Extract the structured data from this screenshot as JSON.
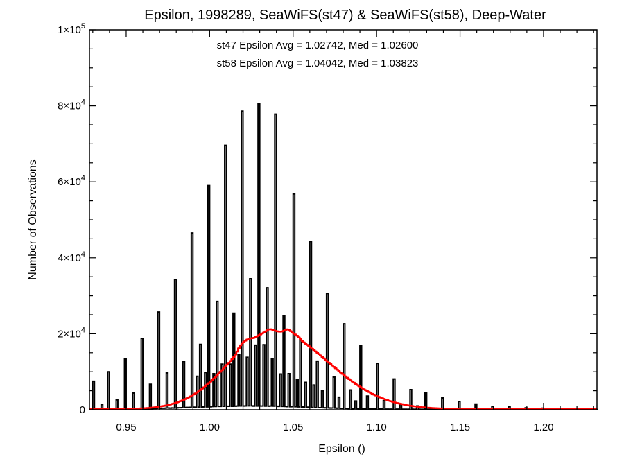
{
  "chart_data": {
    "type": "histogram",
    "title": "Epsilon, 1998289, SeaWiFS(st47) & SeaWiFS(st58), Deep-Water",
    "xlabel": "Epsilon ()",
    "ylabel": "Number of Observations",
    "xlim": [
      0.928,
      1.232
    ],
    "ylim": [
      0,
      100000
    ],
    "x_ticks": [
      {
        "value": 0.95,
        "label": "0.95"
      },
      {
        "value": 1.0,
        "label": "1.00"
      },
      {
        "value": 1.05,
        "label": "1.05"
      },
      {
        "value": 1.1,
        "label": "1.10"
      },
      {
        "value": 1.15,
        "label": "1.15"
      },
      {
        "value": 1.2,
        "label": "1.20"
      }
    ],
    "y_ticks": [
      {
        "value": 0,
        "mant": "0",
        "exp": ""
      },
      {
        "value": 20000,
        "mant": "2×10",
        "exp": "4"
      },
      {
        "value": 40000,
        "mant": "4×10",
        "exp": "4"
      },
      {
        "value": 60000,
        "mant": "6×10",
        "exp": "4"
      },
      {
        "value": 80000,
        "mant": "8×10",
        "exp": "4"
      },
      {
        "value": 100000,
        "mant": "1×10",
        "exp": "5"
      }
    ],
    "annotations": [
      {
        "text": "st47 Epsilon Avg = 1.02742, Med = 1.02600",
        "color": "#000000"
      },
      {
        "text": "st58 Epsilon Avg = 1.04042, Med = 1.03823",
        "color": "#ff0000"
      }
    ],
    "bin_width": 0.001,
    "series": [
      {
        "color": "#000000",
        "style": "step",
        "spikes": [
          [
            0.93,
            7500
          ],
          [
            0.94,
            10000
          ],
          [
            0.95,
            13500
          ],
          [
            0.96,
            18800
          ],
          [
            0.97,
            25700
          ],
          [
            0.98,
            34300
          ],
          [
            0.99,
            46500
          ],
          [
            1.0,
            59000
          ],
          [
            1.01,
            69600
          ],
          [
            1.02,
            78600
          ],
          [
            1.03,
            80500
          ],
          [
            1.04,
            77800
          ],
          [
            1.05,
            56800
          ],
          [
            1.06,
            44300
          ],
          [
            1.07,
            30600
          ],
          [
            1.08,
            22600
          ],
          [
            1.09,
            16800
          ],
          [
            1.1,
            12200
          ],
          [
            1.11,
            8100
          ],
          [
            1.12,
            5300
          ],
          [
            1.13,
            4400
          ],
          [
            1.14,
            3100
          ],
          [
            1.15,
            2200
          ],
          [
            1.16,
            1500
          ],
          [
            1.17,
            900
          ],
          [
            1.18,
            800
          ],
          [
            1.19,
            500
          ],
          [
            1.2,
            400
          ],
          [
            1.21,
            300
          ],
          [
            1.22,
            200
          ],
          [
            0.935,
            1400
          ],
          [
            0.945,
            2600
          ],
          [
            0.955,
            4400
          ],
          [
            0.965,
            6700
          ],
          [
            0.975,
            9700
          ],
          [
            0.985,
            12700
          ],
          [
            0.995,
            17200
          ],
          [
            1.005,
            28500
          ],
          [
            1.015,
            25400
          ],
          [
            1.025,
            34500
          ],
          [
            1.035,
            32100
          ],
          [
            1.045,
            24800
          ],
          [
            1.055,
            18700
          ],
          [
            1.065,
            12800
          ],
          [
            1.075,
            8600
          ],
          [
            1.085,
            5200
          ],
          [
            1.095,
            3600
          ],
          [
            1.105,
            2400
          ],
          [
            1.115,
            1500
          ],
          [
            1.125,
            1000
          ],
          [
            0.9925,
            8800
          ],
          [
            1.0025,
            9500
          ],
          [
            1.0125,
            12000
          ],
          [
            1.0225,
            13800
          ],
          [
            1.0325,
            17100
          ],
          [
            1.0425,
            9400
          ],
          [
            1.0525,
            8000
          ],
          [
            1.0625,
            6500
          ],
          [
            0.9975,
            9800
          ],
          [
            1.0075,
            12000
          ],
          [
            1.0175,
            14600
          ],
          [
            1.0275,
            17000
          ],
          [
            1.0375,
            13500
          ],
          [
            1.0475,
            9500
          ],
          [
            1.0575,
            7200
          ],
          [
            1.0675,
            5000
          ],
          [
            1.0775,
            3300
          ],
          [
            1.0875,
            2300
          ]
        ],
        "baseline_center": 1.025,
        "baseline_peak": 900,
        "baseline_sigma": 0.035
      },
      {
        "color": "#ff0000",
        "style": "step",
        "peak_x": 1.038,
        "peak_y": 20500,
        "sigma_left": 0.026,
        "sigma_right": 0.033,
        "bumps": [
          [
            1.019,
            1300
          ],
          [
            1.023,
            900
          ],
          [
            1.036,
            600
          ],
          [
            1.047,
            1200
          ],
          [
            1.052,
            700
          ]
        ]
      }
    ]
  }
}
